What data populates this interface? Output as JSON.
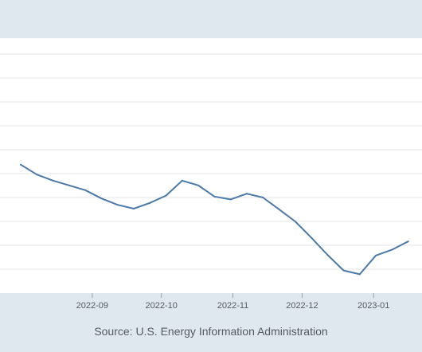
{
  "chart_data": {
    "type": "line",
    "x_type": "date",
    "xlabel": "",
    "ylabel": "",
    "grid": true,
    "x_ticks": [
      "2022-09",
      "2022-10",
      "2022-11",
      "2022-12",
      "2023-01"
    ],
    "series": [
      {
        "color": "#4a79aa",
        "points": [
          {
            "x": "2022-08-01",
            "y": 5.53
          },
          {
            "x": "2022-08-08",
            "y": 5.22
          },
          {
            "x": "2022-08-15",
            "y": 5.03
          },
          {
            "x": "2022-08-22",
            "y": 4.88
          },
          {
            "x": "2022-08-29",
            "y": 4.73
          },
          {
            "x": "2022-09-05",
            "y": 4.47
          },
          {
            "x": "2022-09-12",
            "y": 4.27
          },
          {
            "x": "2022-09-19",
            "y": 4.15
          },
          {
            "x": "2022-09-26",
            "y": 4.33
          },
          {
            "x": "2022-10-03",
            "y": 4.56
          },
          {
            "x": "2022-10-10",
            "y": 5.03
          },
          {
            "x": "2022-10-17",
            "y": 4.88
          },
          {
            "x": "2022-10-24",
            "y": 4.53
          },
          {
            "x": "2022-10-31",
            "y": 4.44
          },
          {
            "x": "2022-11-07",
            "y": 4.62
          },
          {
            "x": "2022-11-14",
            "y": 4.5
          },
          {
            "x": "2022-11-21",
            "y": 4.13
          },
          {
            "x": "2022-11-28",
            "y": 3.75
          },
          {
            "x": "2022-12-05",
            "y": 3.24
          },
          {
            "x": "2022-12-12",
            "y": 2.7
          },
          {
            "x": "2022-12-19",
            "y": 2.21
          },
          {
            "x": "2022-12-26",
            "y": 2.09
          },
          {
            "x": "2023-01-02",
            "y": 2.68
          },
          {
            "x": "2023-01-09",
            "y": 2.86
          },
          {
            "x": "2023-01-16",
            "y": 3.12
          }
        ]
      }
    ],
    "source": "Source: U.S. Energy Information Administration"
  }
}
